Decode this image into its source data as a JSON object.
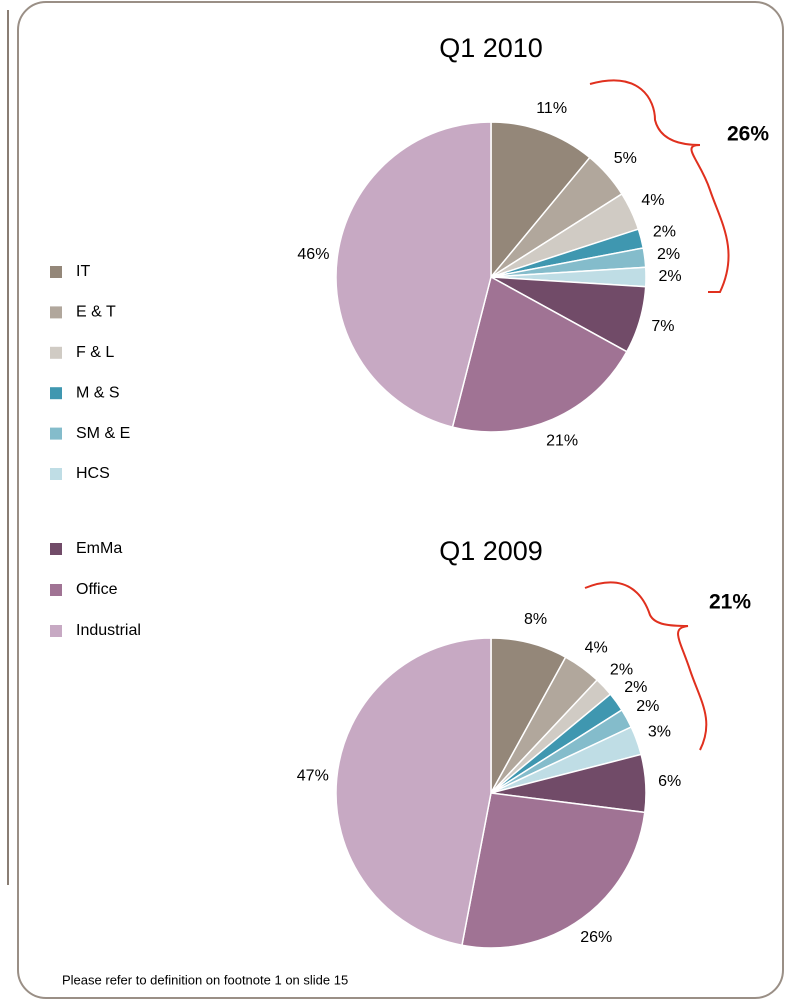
{
  "chart_data": [
    {
      "type": "pie",
      "title": "Q1 2010",
      "categories": [
        "IT",
        "E & T",
        "F & L",
        "M & S",
        "SM & E",
        "HCS",
        "EmMa",
        "Office",
        "Industrial"
      ],
      "values": [
        11,
        5,
        4,
        2,
        2,
        2,
        7,
        21,
        46
      ],
      "value_labels": [
        "11%",
        "5%",
        "4%",
        "2%",
        "2%",
        "2%",
        "7%",
        "21%",
        "46%"
      ],
      "colors": [
        "#948779",
        "#b1a79c",
        "#d0cbc4",
        "#3f97b0",
        "#84bccb",
        "#bfdde5",
        "#714b68",
        "#a07394",
        "#c7a9c3"
      ],
      "annotation": "26%",
      "legend": "left"
    },
    {
      "type": "pie",
      "title": "Q1 2009",
      "categories": [
        "IT",
        "E & T",
        "F & L",
        "M & S",
        "SM & E",
        "HCS",
        "EmMa",
        "Office",
        "Industrial"
      ],
      "values": [
        8,
        4,
        2,
        2,
        2,
        3,
        6,
        26,
        47
      ],
      "value_labels": [
        "8%",
        "4%",
        "2%",
        "2%",
        "2%",
        "3%",
        "6%",
        "26%",
        "47%"
      ],
      "colors": [
        "#948779",
        "#b1a79c",
        "#d0cbc4",
        "#3f97b0",
        "#84bccb",
        "#bfdde5",
        "#714b68",
        "#a07394",
        "#c7a9c3"
      ],
      "annotation": "21%"
    }
  ],
  "footnote": "Please refer to definition on footnote 1 on slide 15"
}
